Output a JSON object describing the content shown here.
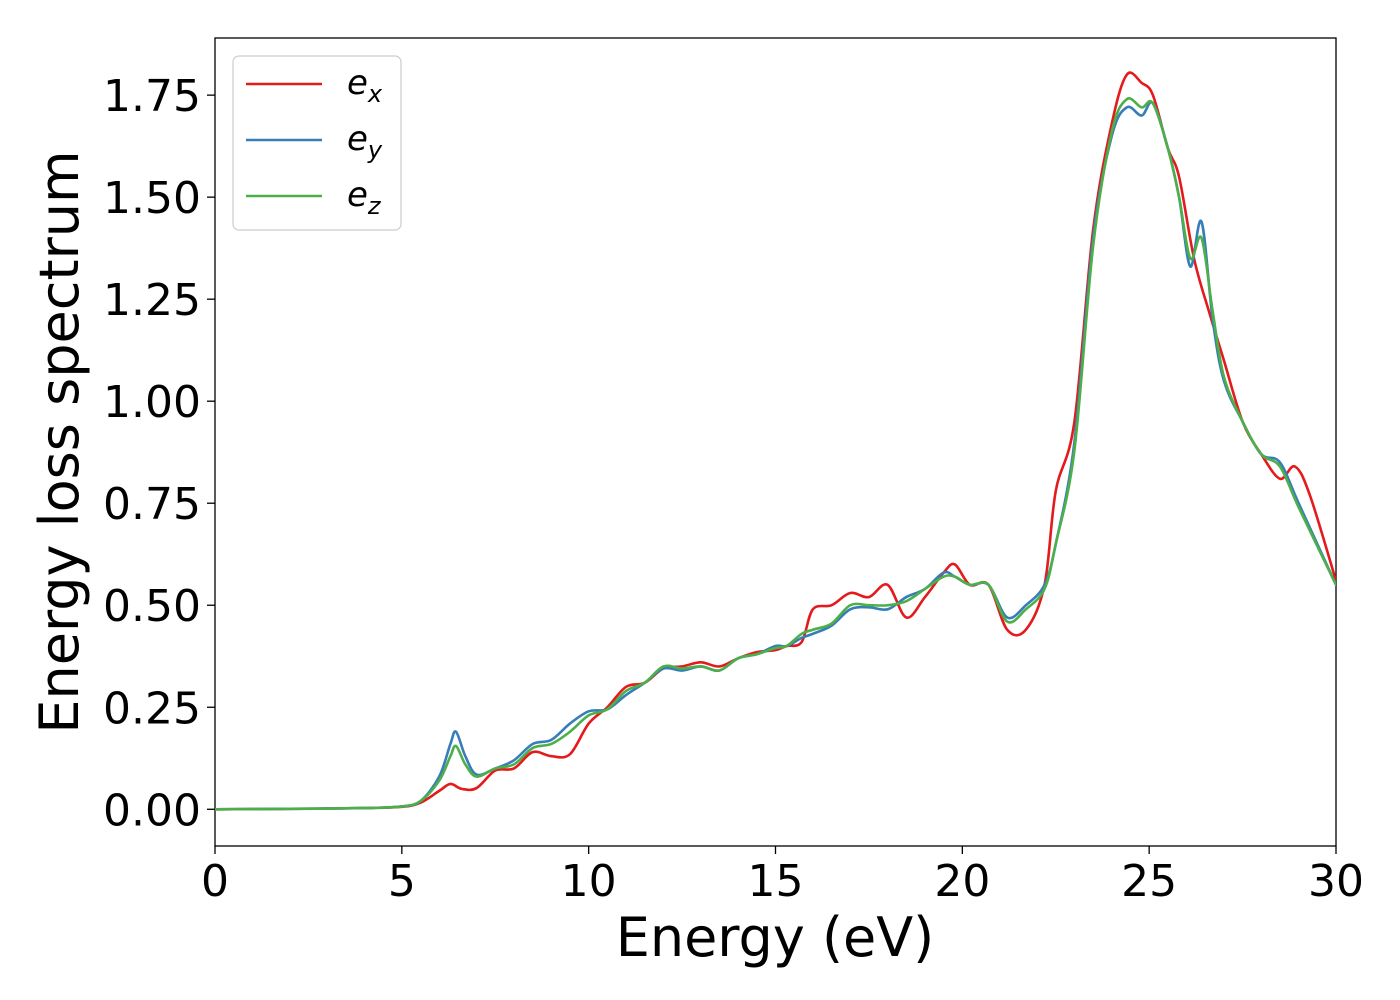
{
  "chart_data": {
    "type": "line",
    "xlabel": "Energy (eV)",
    "ylabel": "Energy loss spectrum",
    "xlim": [
      0,
      30
    ],
    "ylim": [
      -0.09,
      1.89
    ],
    "xticks": [
      0,
      5,
      10,
      15,
      20,
      25,
      30
    ],
    "xtick_labels": [
      "0",
      "5",
      "10",
      "15",
      "20",
      "25",
      "30"
    ],
    "yticks": [
      0,
      0.25,
      0.5,
      0.75,
      1.0,
      1.25,
      1.5,
      1.75
    ],
    "ytick_labels": [
      "0.00",
      "0.25",
      "0.50",
      "0.75",
      "1.00",
      "1.25",
      "1.50",
      "1.75"
    ],
    "grid": false,
    "legend_position": "top-left",
    "series": [
      {
        "name": "e_x",
        "label_base": "e",
        "label_sub": "x",
        "color": "#e41a1c",
        "x": [
          0,
          2,
          4,
          5,
          5.5,
          6,
          6.3,
          6.6,
          7,
          7.5,
          8,
          8.5,
          9,
          9.5,
          10,
          10.5,
          11,
          11.5,
          12,
          12.5,
          13,
          13.5,
          14,
          14.5,
          15,
          15.3,
          15.7,
          16,
          16.5,
          17,
          17.5,
          18,
          18.5,
          19,
          19.5,
          19.8,
          20.2,
          20.7,
          21.2,
          21.7,
          22.2,
          22.5,
          23,
          23.5,
          24,
          24.4,
          24.8,
          25.1,
          25.5,
          25.8,
          26.2,
          26.6,
          27,
          27.5,
          28,
          28.5,
          28.9,
          29.3,
          30
        ],
        "y": [
          0,
          0.001,
          0.003,
          0.006,
          0.016,
          0.045,
          0.062,
          0.05,
          0.052,
          0.095,
          0.1,
          0.14,
          0.13,
          0.135,
          0.21,
          0.25,
          0.3,
          0.31,
          0.345,
          0.35,
          0.36,
          0.35,
          0.37,
          0.385,
          0.39,
          0.4,
          0.41,
          0.49,
          0.5,
          0.53,
          0.52,
          0.55,
          0.47,
          0.52,
          0.58,
          0.6,
          0.55,
          0.55,
          0.44,
          0.44,
          0.55,
          0.78,
          0.95,
          1.42,
          1.68,
          1.8,
          1.78,
          1.75,
          1.62,
          1.55,
          1.35,
          1.22,
          1.1,
          0.95,
          0.87,
          0.81,
          0.84,
          0.77,
          0.56
        ]
      },
      {
        "name": "e_y",
        "label_base": "e",
        "label_sub": "y",
        "color": "#377eb8",
        "x": [
          0,
          2,
          4,
          5,
          5.5,
          6,
          6.3,
          6.45,
          6.7,
          7,
          7.5,
          8,
          8.5,
          9,
          9.5,
          10,
          10.5,
          11,
          11.5,
          12,
          12.5,
          13,
          13.5,
          14,
          14.5,
          15,
          15.3,
          15.7,
          16,
          16.5,
          17,
          17.5,
          18,
          18.5,
          19,
          19.5,
          19.8,
          20.2,
          20.7,
          21.2,
          21.7,
          22.2,
          22.5,
          23,
          23.5,
          24,
          24.4,
          24.8,
          25.1,
          25.5,
          25.8,
          26.1,
          26.4,
          26.7,
          27,
          27.5,
          28,
          28.5,
          29,
          30
        ],
        "y": [
          0,
          0.001,
          0.003,
          0.007,
          0.02,
          0.08,
          0.16,
          0.19,
          0.13,
          0.085,
          0.1,
          0.12,
          0.16,
          0.17,
          0.21,
          0.24,
          0.245,
          0.28,
          0.31,
          0.345,
          0.34,
          0.35,
          0.34,
          0.37,
          0.38,
          0.4,
          0.4,
          0.42,
          0.43,
          0.45,
          0.49,
          0.495,
          0.49,
          0.52,
          0.54,
          0.58,
          0.57,
          0.55,
          0.55,
          0.47,
          0.5,
          0.55,
          0.65,
          0.9,
          1.4,
          1.65,
          1.72,
          1.7,
          1.73,
          1.62,
          1.5,
          1.33,
          1.44,
          1.2,
          1.05,
          0.95,
          0.87,
          0.85,
          0.75,
          0.55
        ]
      },
      {
        "name": "e_z",
        "label_base": "e",
        "label_sub": "z",
        "color": "#4daf4a",
        "x": [
          0,
          2,
          4,
          5,
          5.5,
          6,
          6.3,
          6.45,
          6.7,
          7,
          7.5,
          8,
          8.5,
          9,
          9.5,
          10,
          10.5,
          11,
          11.5,
          12,
          12.5,
          13,
          13.5,
          14,
          14.5,
          15,
          15.3,
          15.7,
          16,
          16.5,
          17,
          17.5,
          18,
          18.5,
          19,
          19.5,
          19.8,
          20.2,
          20.7,
          21.2,
          21.7,
          22.2,
          22.5,
          23,
          23.5,
          24,
          24.4,
          24.8,
          25.1,
          25.5,
          25.8,
          26.1,
          26.4,
          26.7,
          27,
          27.5,
          28,
          28.5,
          29,
          30
        ],
        "y": [
          0,
          0.001,
          0.003,
          0.007,
          0.02,
          0.07,
          0.13,
          0.155,
          0.11,
          0.08,
          0.1,
          0.11,
          0.15,
          0.16,
          0.19,
          0.23,
          0.245,
          0.29,
          0.31,
          0.35,
          0.345,
          0.35,
          0.34,
          0.37,
          0.38,
          0.395,
          0.4,
          0.43,
          0.44,
          0.455,
          0.5,
          0.5,
          0.5,
          0.51,
          0.54,
          0.57,
          0.57,
          0.55,
          0.55,
          0.46,
          0.49,
          0.54,
          0.65,
          0.88,
          1.38,
          1.66,
          1.74,
          1.72,
          1.73,
          1.62,
          1.5,
          1.35,
          1.4,
          1.22,
          1.06,
          0.95,
          0.87,
          0.84,
          0.74,
          0.55
        ]
      }
    ]
  }
}
